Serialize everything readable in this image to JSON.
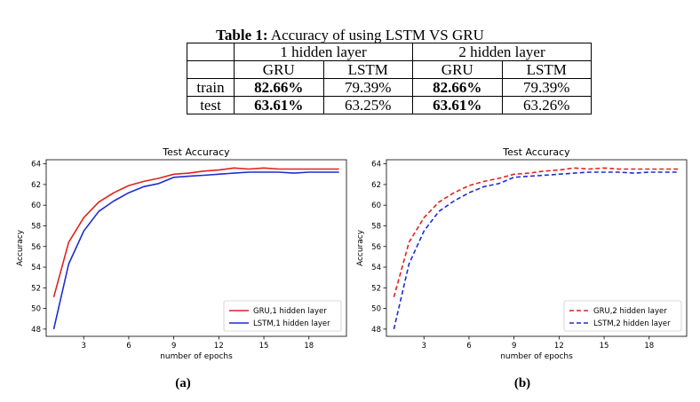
{
  "table": {
    "caption_label": "Table 1:",
    "caption_text": "Accuracy of using LSTM VS GRU",
    "group_headers": [
      "1 hidden layer",
      "2 hidden layer"
    ],
    "model_headers": [
      "GRU",
      "LSTM",
      "GRU",
      "LSTM"
    ],
    "rows": [
      {
        "label": "train",
        "values": [
          "82.66%",
          "79.39%",
          "82.66%",
          "79.39%"
        ]
      },
      {
        "label": "test",
        "values": [
          "63.61%",
          "63.25%",
          "63.61%",
          "63.26%"
        ]
      }
    ]
  },
  "chart_data": [
    {
      "type": "line",
      "title": "Test Accuracy",
      "xlabel": "number of epochs",
      "ylabel": "Accuracy",
      "xlim": [
        0.5,
        20.5
      ],
      "ylim": [
        47.3,
        64.4
      ],
      "xticks": [
        3,
        6,
        9,
        12,
        15,
        18
      ],
      "yticks": [
        48,
        50,
        52,
        54,
        56,
        58,
        60,
        62,
        64
      ],
      "legend": "lower-right",
      "grid": false,
      "x": [
        1,
        2,
        3,
        4,
        5,
        6,
        7,
        8,
        9,
        10,
        11,
        12,
        13,
        14,
        15,
        16,
        17,
        18,
        19,
        20
      ],
      "series": [
        {
          "name": "GRU,1 hidden layer",
          "color": "#e1221c",
          "dash": "solid",
          "values": [
            51.1,
            56.4,
            58.8,
            60.3,
            61.2,
            61.9,
            62.3,
            62.6,
            63.0,
            63.1,
            63.3,
            63.4,
            63.6,
            63.5,
            63.6,
            63.5,
            63.5,
            63.5,
            63.5,
            63.5
          ]
        },
        {
          "name": "LSTM,1 hidden layer",
          "color": "#1f2ccf",
          "dash": "solid",
          "values": [
            48.0,
            54.3,
            57.5,
            59.4,
            60.4,
            61.2,
            61.8,
            62.1,
            62.7,
            62.8,
            62.9,
            63.0,
            63.1,
            63.2,
            63.2,
            63.2,
            63.1,
            63.2,
            63.2,
            63.2
          ]
        }
      ],
      "sublabel": "(a)"
    },
    {
      "type": "line",
      "title": "Test Accuracy",
      "xlabel": "number of epochs",
      "ylabel": "Accuracy",
      "xlim": [
        0.5,
        20.5
      ],
      "ylim": [
        47.3,
        64.4
      ],
      "xticks": [
        3,
        6,
        9,
        12,
        15,
        18
      ],
      "yticks": [
        48,
        50,
        52,
        54,
        56,
        58,
        60,
        62,
        64
      ],
      "legend": "lower-right",
      "grid": false,
      "x": [
        1,
        2,
        3,
        4,
        5,
        6,
        7,
        8,
        9,
        10,
        11,
        12,
        13,
        14,
        15,
        16,
        17,
        18,
        19,
        20
      ],
      "series": [
        {
          "name": "GRU,2 hidden layer",
          "color": "#e1221c",
          "dash": "dashed",
          "values": [
            51.1,
            56.4,
            58.8,
            60.3,
            61.2,
            61.9,
            62.3,
            62.6,
            63.0,
            63.1,
            63.3,
            63.4,
            63.6,
            63.5,
            63.6,
            63.5,
            63.5,
            63.5,
            63.5,
            63.5
          ]
        },
        {
          "name": "LSTM,2 hidden layer",
          "color": "#1f2ccf",
          "dash": "dashed",
          "values": [
            48.0,
            54.3,
            57.5,
            59.4,
            60.4,
            61.2,
            61.8,
            62.1,
            62.7,
            62.8,
            62.9,
            63.0,
            63.1,
            63.2,
            63.2,
            63.2,
            63.1,
            63.2,
            63.2,
            63.2
          ]
        }
      ],
      "sublabel": "(b)"
    }
  ]
}
